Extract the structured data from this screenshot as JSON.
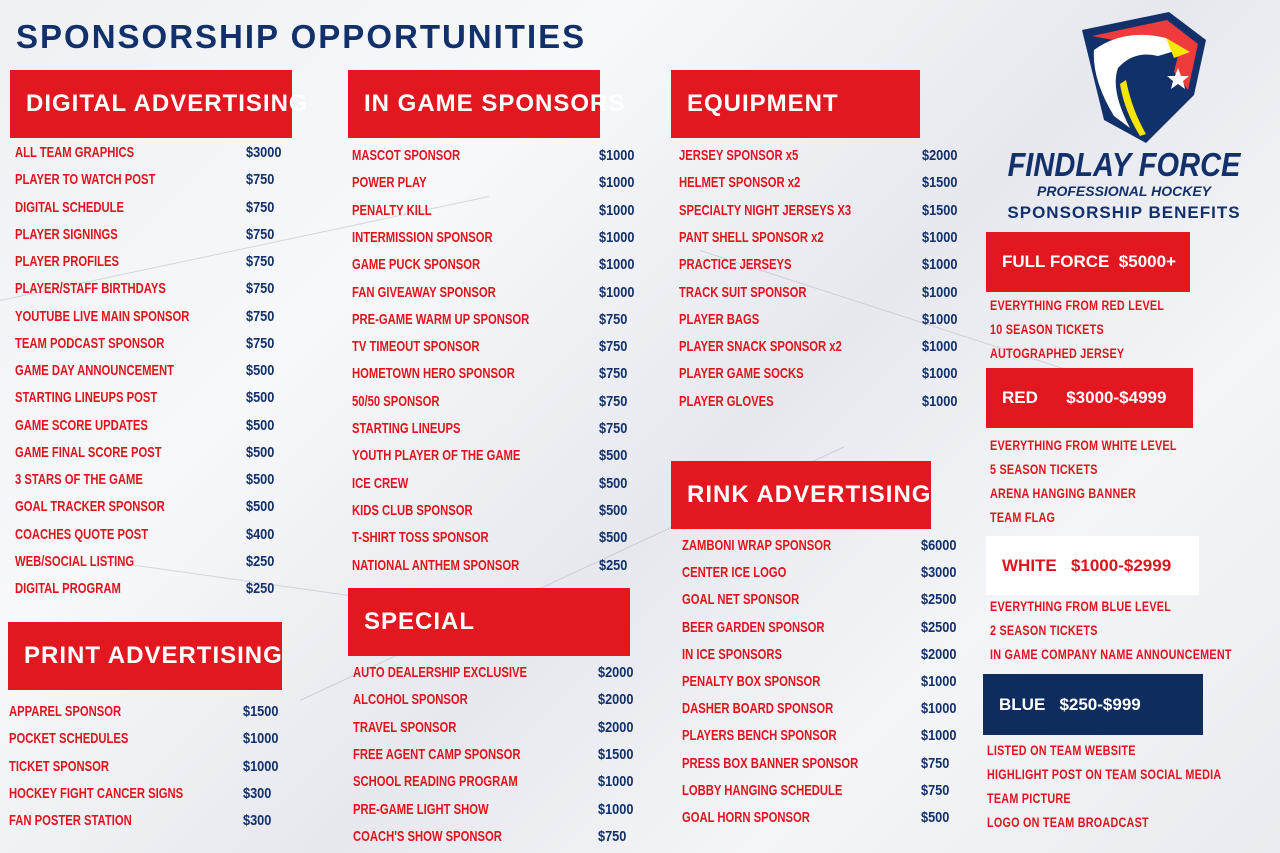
{
  "title": "SPONSORSHIP OPPORTUNITIES",
  "brand": {
    "name": "FINDLAY FORCE",
    "tagline": "PROFESSIONAL HOCKEY",
    "benefits_title": "SPONSORSHIP BENEFITS",
    "logo": "eagle-shield-logo"
  },
  "colors": {
    "red": "#e3171f",
    "navy": "#12306a",
    "blue_tier": "#0f2c5e",
    "yellow": "#f5e600"
  },
  "sections": [
    {
      "id": "digital",
      "title": "DIGITAL ADVERTISING",
      "items": [
        {
          "name": "ALL TEAM GRAPHICS",
          "price": "$3000"
        },
        {
          "name": "PLAYER TO WATCH POST",
          "price": "$750"
        },
        {
          "name": "DIGITAL SCHEDULE",
          "price": "$750"
        },
        {
          "name": "PLAYER SIGNINGS",
          "price": "$750"
        },
        {
          "name": "PLAYER PROFILES",
          "price": "$750"
        },
        {
          "name": "PLAYER/STAFF BIRTHDAYS",
          "price": "$750"
        },
        {
          "name": "YOUTUBE LIVE MAIN SPONSOR",
          "price": "$750"
        },
        {
          "name": "TEAM PODCAST SPONSOR",
          "price": "$750"
        },
        {
          "name": "GAME DAY ANNOUNCEMENT",
          "price": "$500"
        },
        {
          "name": "STARTING LINEUPS POST",
          "price": "$500"
        },
        {
          "name": "GAME SCORE UPDATES",
          "price": "$500"
        },
        {
          "name": "GAME FINAL SCORE POST",
          "price": "$500"
        },
        {
          "name": "3 STARS OF THE GAME",
          "price": "$500"
        },
        {
          "name": "GOAL TRACKER SPONSOR",
          "price": "$500"
        },
        {
          "name": "COACHES QUOTE POST",
          "price": "$400"
        },
        {
          "name": "WEB/SOCIAL LISTING",
          "price": "$250"
        },
        {
          "name": "DIGITAL PROGRAM",
          "price": "$250"
        }
      ]
    },
    {
      "id": "print",
      "title": "PRINT ADVERTISING",
      "items": [
        {
          "name": "APPAREL SPONSOR",
          "price": "$1500"
        },
        {
          "name": "POCKET SCHEDULES",
          "price": "$1000"
        },
        {
          "name": "TICKET SPONSOR",
          "price": "$1000"
        },
        {
          "name": "HOCKEY FIGHT CANCER SIGNS",
          "price": "$300"
        },
        {
          "name": "FAN POSTER STATION",
          "price": "$300"
        }
      ]
    },
    {
      "id": "ingame",
      "title": "IN GAME SPONSORS",
      "items": [
        {
          "name": "MASCOT SPONSOR",
          "price": "$1000"
        },
        {
          "name": "POWER PLAY",
          "price": "$1000"
        },
        {
          "name": "PENALTY KILL",
          "price": "$1000"
        },
        {
          "name": "INTERMISSION SPONSOR",
          "price": "$1000"
        },
        {
          "name": "GAME PUCK SPONSOR",
          "price": "$1000"
        },
        {
          "name": "FAN GIVEAWAY SPONSOR",
          "price": "$1000"
        },
        {
          "name": "PRE-GAME WARM UP SPONSOR",
          "price": "$750"
        },
        {
          "name": "TV TIMEOUT SPONSOR",
          "price": "$750"
        },
        {
          "name": "HOMETOWN HERO SPONSOR",
          "price": "$750"
        },
        {
          "name": "50/50 SPONSOR",
          "price": "$750"
        },
        {
          "name": "STARTING LINEUPS",
          "price": "$750"
        },
        {
          "name": "YOUTH PLAYER OF THE GAME",
          "price": "$500"
        },
        {
          "name": "ICE CREW",
          "price": "$500"
        },
        {
          "name": "KIDS CLUB SPONSOR",
          "price": "$500"
        },
        {
          "name": "T-SHIRT TOSS SPONSOR",
          "price": "$500"
        },
        {
          "name": "NATIONAL ANTHEM SPONSOR",
          "price": "$250"
        }
      ]
    },
    {
      "id": "special",
      "title": "SPECIAL",
      "items": [
        {
          "name": "AUTO DEALERSHIP EXCLUSIVE",
          "price": "$2000"
        },
        {
          "name": "ALCOHOL SPONSOR",
          "price": "$2000"
        },
        {
          "name": "TRAVEL SPONSOR",
          "price": "$2000"
        },
        {
          "name": "FREE AGENT CAMP SPONSOR",
          "price": "$1500"
        },
        {
          "name": "SCHOOL READING PROGRAM",
          "price": "$1000"
        },
        {
          "name": "PRE-GAME LIGHT SHOW",
          "price": "$1000"
        },
        {
          "name": "COACH'S SHOW SPONSOR",
          "price": "$750"
        }
      ]
    },
    {
      "id": "equipment",
      "title": "EQUIPMENT",
      "items": [
        {
          "name": "JERSEY SPONSOR x5",
          "price": "$2000"
        },
        {
          "name": "HELMET SPONSOR x2",
          "price": "$1500"
        },
        {
          "name": "SPECIALTY NIGHT JERSEYS X3",
          "price": "$1500"
        },
        {
          "name": "PANT SHELL SPONSOR  x2",
          "price": "$1000"
        },
        {
          "name": "PRACTICE JERSEYS",
          "price": "$1000"
        },
        {
          "name": "TRACK SUIT SPONSOR",
          "price": "$1000"
        },
        {
          "name": "PLAYER BAGS",
          "price": "$1000"
        },
        {
          "name": "PLAYER SNACK SPONSOR x2",
          "price": "$1000"
        },
        {
          "name": "PLAYER GAME SOCKS",
          "price": "$1000"
        },
        {
          "name": "PLAYER GLOVES",
          "price": "$1000"
        }
      ]
    },
    {
      "id": "rink",
      "title": "RINK ADVERTISING",
      "items": [
        {
          "name": "ZAMBONI WRAP SPONSOR",
          "price": "$6000"
        },
        {
          "name": "CENTER ICE LOGO",
          "price": "$3000"
        },
        {
          "name": "GOAL NET SPONSOR",
          "price": "$2500"
        },
        {
          "name": "BEER GARDEN SPONSOR",
          "price": "$2500"
        },
        {
          "name": "IN ICE SPONSORS",
          "price": "$2000"
        },
        {
          "name": "PENALTY BOX SPONSOR",
          "price": "$1000"
        },
        {
          "name": "DASHER BOARD SPONSOR",
          "price": "$1000"
        },
        {
          "name": "PLAYERS BENCH SPONSOR",
          "price": "$1000"
        },
        {
          "name": "PRESS BOX BANNER SPONSOR",
          "price": "$750"
        },
        {
          "name": "LOBBY HANGING SCHEDULE",
          "price": "$750"
        },
        {
          "name": "GOAL HORN SPONSOR",
          "price": "$500"
        }
      ]
    }
  ],
  "tiers": [
    {
      "id": "full-force",
      "label": "FULL FORCE  $5000+",
      "benefits": [
        "EVERYTHING FROM RED LEVEL",
        "10 SEASON TICKETS",
        "AUTOGRAPHED JERSEY"
      ]
    },
    {
      "id": "red",
      "label": "RED      $3000-$4999",
      "benefits": [
        "EVERYTHING FROM WHITE LEVEL",
        "5 SEASON TICKETS",
        "ARENA HANGING BANNER",
        "TEAM FLAG"
      ]
    },
    {
      "id": "white",
      "label": "WHITE   $1000-$2999",
      "benefits": [
        "EVERYTHING FROM BLUE LEVEL",
        "2 SEASON TICKETS",
        "IN GAME COMPANY NAME ANNOUNCEMENT"
      ]
    },
    {
      "id": "blue",
      "label": "BLUE   $250-$999",
      "benefits": [
        "LISTED ON TEAM WEBSITE",
        "HIGHLIGHT POST ON TEAM SOCIAL MEDIA",
        "TEAM PICTURE",
        "LOGO ON TEAM BROADCAST"
      ]
    }
  ]
}
